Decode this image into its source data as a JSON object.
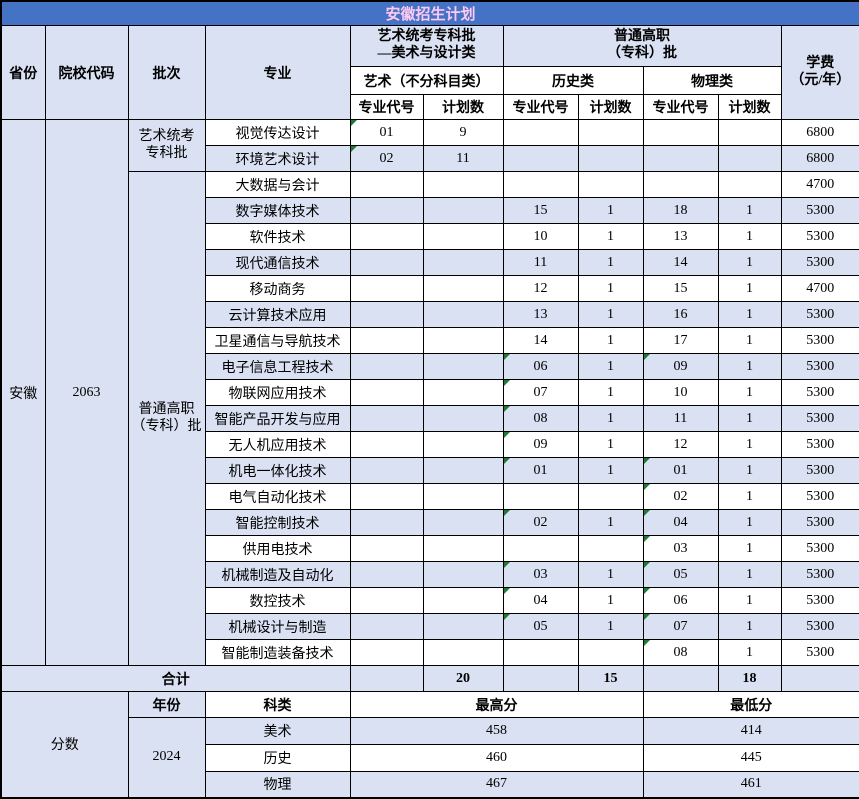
{
  "title": "安徽招生计划",
  "colors": {
    "title_bg": "#4472C4",
    "title_text": "#FFC9F3",
    "band_fill": "#D9E1F2",
    "triangle_green": "#1E7B34"
  },
  "header": {
    "province": "省份",
    "college_code": "院校代码",
    "batch": "批次",
    "major": "专业",
    "art_group": "艺术统考专科批\n—美术与设计类",
    "vocational_group": "普通高职\n（专科）批",
    "fee": "学费\n（元/年）",
    "art_sub": "艺术（不分科目类）",
    "history_sub": "历史类",
    "physics_sub": "物理类",
    "code_col": "专业代号",
    "count_col": "计划数"
  },
  "plan": {
    "province": "安徽",
    "college_code": "2063",
    "batches": [
      {
        "label": "艺术统考\n专科批",
        "start": 0,
        "rows": 2
      },
      {
        "label": "普通高职\n（专科）批",
        "start": 2,
        "rows": 19
      }
    ],
    "rows": [
      [
        "视觉传达设计",
        "01",
        "9",
        "",
        "",
        "",
        "",
        "6800"
      ],
      [
        "环境艺术设计",
        "02",
        "11",
        "",
        "",
        "",
        "",
        "6800"
      ],
      [
        "大数据与会计",
        "",
        "",
        "",
        "",
        "",
        "",
        "4700"
      ],
      [
        "数字媒体技术",
        "",
        "",
        "15",
        "1",
        "18",
        "1",
        "5300"
      ],
      [
        "软件技术",
        "",
        "",
        "10",
        "1",
        "13",
        "1",
        "5300"
      ],
      [
        "现代通信技术",
        "",
        "",
        "11",
        "1",
        "14",
        "1",
        "5300"
      ],
      [
        "移动商务",
        "",
        "",
        "12",
        "1",
        "15",
        "1",
        "4700"
      ],
      [
        "云计算技术应用",
        "",
        "",
        "13",
        "1",
        "16",
        "1",
        "5300"
      ],
      [
        "卫星通信与导航技术",
        "",
        "",
        "14",
        "1",
        "17",
        "1",
        "5300"
      ],
      [
        "电子信息工程技术",
        "",
        "",
        "06",
        "1",
        "09",
        "1",
        "5300"
      ],
      [
        "物联网应用技术",
        "",
        "",
        "07",
        "1",
        "10",
        "1",
        "5300"
      ],
      [
        "智能产品开发与应用",
        "",
        "",
        "08",
        "1",
        "11",
        "1",
        "5300"
      ],
      [
        "无人机应用技术",
        "",
        "",
        "09",
        "1",
        "12",
        "1",
        "5300"
      ],
      [
        "机电一体化技术",
        "",
        "",
        "01",
        "1",
        "01",
        "1",
        "5300"
      ],
      [
        "电气自动化技术",
        "",
        "",
        "",
        "",
        "02",
        "1",
        "5300"
      ],
      [
        "智能控制技术",
        "",
        "",
        "02",
        "1",
        "04",
        "1",
        "5300"
      ],
      [
        "供用电技术",
        "",
        "",
        "",
        "",
        "03",
        "1",
        "5300"
      ],
      [
        "机械制造及自动化",
        "",
        "",
        "03",
        "1",
        "05",
        "1",
        "5300"
      ],
      [
        "数控技术",
        "",
        "",
        "04",
        "1",
        "06",
        "1",
        "5300"
      ],
      [
        "机械设计与制造",
        "",
        "",
        "05",
        "1",
        "07",
        "1",
        "5300"
      ],
      [
        "智能制造装备技术",
        "",
        "",
        "",
        "",
        "08",
        "1",
        "5300"
      ]
    ]
  },
  "totals": {
    "label": "合计",
    "art_count": "20",
    "hist_count": "15",
    "phys_count": "18"
  },
  "scores": {
    "section_label": "分数",
    "year_label": "年份",
    "subject_label": "科类",
    "max_label": "最高分",
    "min_label": "最低分",
    "year": "2024",
    "rows": [
      {
        "subject": "美术",
        "max": "458",
        "min": "414"
      },
      {
        "subject": "历史",
        "max": "460",
        "min": "445"
      },
      {
        "subject": "物理",
        "max": "467",
        "min": "461"
      }
    ]
  }
}
